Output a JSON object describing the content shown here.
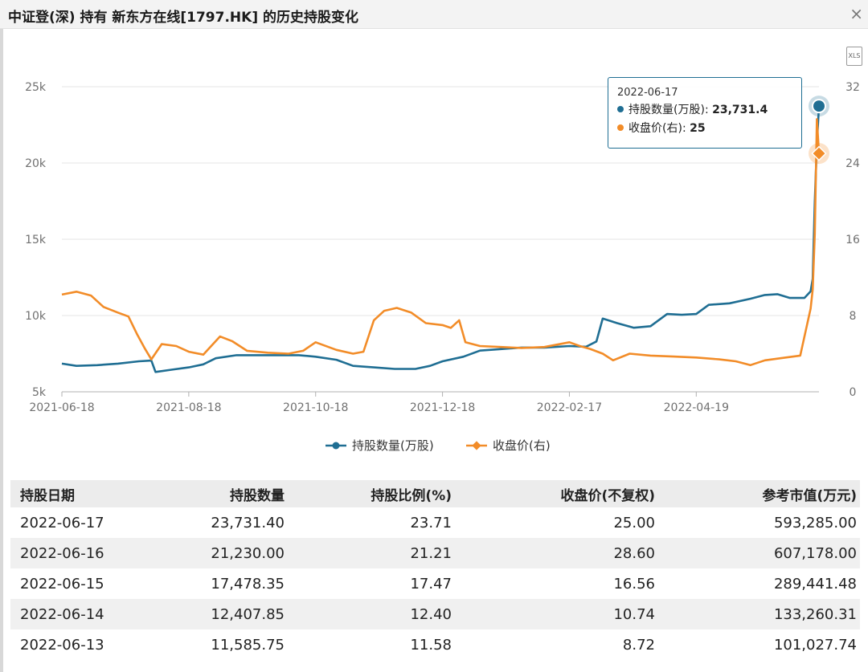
{
  "window": {
    "title": "中证登(深) 持有 新东方在线[1797.HK] 的历史持股变化",
    "close_label": "×",
    "export_label": "XLS"
  },
  "colors": {
    "holdings": "#1f6e93",
    "price": "#f28c28",
    "grid": "#e6e6e6"
  },
  "tooltip": {
    "date": "2022-06-17",
    "holdings_label": "持股数量(万股)",
    "holdings_value": "23,731.4",
    "price_label": "收盘价(右)",
    "price_value": "25"
  },
  "chart_data": {
    "type": "line",
    "x_ticks": [
      "2021-06-18",
      "2021-08-18",
      "2021-10-18",
      "2021-12-18",
      "2022-02-17",
      "2022-04-19"
    ],
    "y_left": {
      "ticks": [
        "5k",
        "10k",
        "15k",
        "20k",
        "25k"
      ],
      "ylim": [
        5000,
        25000
      ]
    },
    "y_right": {
      "ticks": [
        "0",
        "8",
        "16",
        "24",
        "32"
      ],
      "ylim": [
        0,
        32
      ]
    },
    "xlim": [
      "2021-06-18",
      "2022-06-17"
    ],
    "grid": true,
    "legend_position": "bottom",
    "series": [
      {
        "name": "持股数量(万股)",
        "axis": "left",
        "points": [
          [
            "2021-06-18",
            6850
          ],
          [
            "2021-06-25",
            6700
          ],
          [
            "2021-07-05",
            6750
          ],
          [
            "2021-07-15",
            6850
          ],
          [
            "2021-07-25",
            7000
          ],
          [
            "2021-07-31",
            7050
          ],
          [
            "2021-08-02",
            6300
          ],
          [
            "2021-08-10",
            6450
          ],
          [
            "2021-08-18",
            6600
          ],
          [
            "2021-08-25",
            6800
          ],
          [
            "2021-08-31",
            7200
          ],
          [
            "2021-09-10",
            7400
          ],
          [
            "2021-09-25",
            7400
          ],
          [
            "2021-10-10",
            7400
          ],
          [
            "2021-10-18",
            7300
          ],
          [
            "2021-10-28",
            7100
          ],
          [
            "2021-11-05",
            6700
          ],
          [
            "2021-11-15",
            6600
          ],
          [
            "2021-11-25",
            6500
          ],
          [
            "2021-12-05",
            6500
          ],
          [
            "2021-12-12",
            6700
          ],
          [
            "2021-12-18",
            7000
          ],
          [
            "2021-12-28",
            7300
          ],
          [
            "2022-01-05",
            7700
          ],
          [
            "2022-01-15",
            7800
          ],
          [
            "2022-01-25",
            7900
          ],
          [
            "2022-02-05",
            7900
          ],
          [
            "2022-02-17",
            8000
          ],
          [
            "2022-02-25",
            7950
          ],
          [
            "2022-03-02",
            8300
          ],
          [
            "2022-03-05",
            9800
          ],
          [
            "2022-03-12",
            9500
          ],
          [
            "2022-03-20",
            9200
          ],
          [
            "2022-03-28",
            9300
          ],
          [
            "2022-04-05",
            10100
          ],
          [
            "2022-04-12",
            10050
          ],
          [
            "2022-04-19",
            10100
          ],
          [
            "2022-04-25",
            10700
          ],
          [
            "2022-05-05",
            10800
          ],
          [
            "2022-05-15",
            11100
          ],
          [
            "2022-05-22",
            11350
          ],
          [
            "2022-05-28",
            11400
          ],
          [
            "2022-06-03",
            11150
          ],
          [
            "2022-06-10",
            11150
          ],
          [
            "2022-06-13",
            11585.75
          ],
          [
            "2022-06-14",
            12407.85
          ],
          [
            "2022-06-15",
            17478.35
          ],
          [
            "2022-06-16",
            21230
          ],
          [
            "2022-06-17",
            23731.4
          ]
        ]
      },
      {
        "name": "收盘价(右)",
        "axis": "right",
        "points": [
          [
            "2021-06-18",
            10.2
          ],
          [
            "2021-06-25",
            10.5
          ],
          [
            "2021-07-02",
            10.1
          ],
          [
            "2021-07-08",
            8.9
          ],
          [
            "2021-07-15",
            8.3
          ],
          [
            "2021-07-20",
            7.9
          ],
          [
            "2021-07-24",
            6.1
          ],
          [
            "2021-07-28",
            4.5
          ],
          [
            "2021-07-31",
            3.4
          ],
          [
            "2021-08-05",
            5.0
          ],
          [
            "2021-08-12",
            4.8
          ],
          [
            "2021-08-18",
            4.2
          ],
          [
            "2021-08-25",
            3.9
          ],
          [
            "2021-09-02",
            5.8
          ],
          [
            "2021-09-08",
            5.3
          ],
          [
            "2021-09-15",
            4.3
          ],
          [
            "2021-09-25",
            4.1
          ],
          [
            "2021-10-05",
            4.0
          ],
          [
            "2021-10-12",
            4.3
          ],
          [
            "2021-10-18",
            5.2
          ],
          [
            "2021-10-28",
            4.4
          ],
          [
            "2021-11-05",
            4.0
          ],
          [
            "2021-11-10",
            4.2
          ],
          [
            "2021-11-15",
            7.5
          ],
          [
            "2021-11-20",
            8.5
          ],
          [
            "2021-11-26",
            8.8
          ],
          [
            "2021-12-03",
            8.3
          ],
          [
            "2021-12-10",
            7.2
          ],
          [
            "2021-12-18",
            7.0
          ],
          [
            "2021-12-22",
            6.7
          ],
          [
            "2021-12-26",
            7.5
          ],
          [
            "2021-12-29",
            5.2
          ],
          [
            "2022-01-05",
            4.8
          ],
          [
            "2022-01-15",
            4.7
          ],
          [
            "2022-01-25",
            4.6
          ],
          [
            "2022-02-05",
            4.7
          ],
          [
            "2022-02-17",
            5.2
          ],
          [
            "2022-02-22",
            4.8
          ],
          [
            "2022-02-27",
            4.5
          ],
          [
            "2022-03-05",
            4.0
          ],
          [
            "2022-03-10",
            3.3
          ],
          [
            "2022-03-18",
            4.0
          ],
          [
            "2022-03-28",
            3.8
          ],
          [
            "2022-04-08",
            3.7
          ],
          [
            "2022-04-19",
            3.6
          ],
          [
            "2022-04-30",
            3.4
          ],
          [
            "2022-05-08",
            3.2
          ],
          [
            "2022-05-15",
            2.8
          ],
          [
            "2022-05-22",
            3.3
          ],
          [
            "2022-06-01",
            3.6
          ],
          [
            "2022-06-08",
            3.8
          ],
          [
            "2022-06-13",
            8.72
          ],
          [
            "2022-06-14",
            10.74
          ],
          [
            "2022-06-15",
            16.56
          ],
          [
            "2022-06-16",
            28.6
          ],
          [
            "2022-06-17",
            25
          ]
        ]
      }
    ]
  },
  "table": {
    "headers": [
      "持股日期",
      "持股数量",
      "持股比例(%)",
      "收盘价(不复权)",
      "参考市值(万元)"
    ],
    "rows": [
      [
        "2022-06-17",
        "23,731.40",
        "23.71",
        "25.00",
        "593,285.00"
      ],
      [
        "2022-06-16",
        "21,230.00",
        "21.21",
        "28.60",
        "607,178.00"
      ],
      [
        "2022-06-15",
        "17,478.35",
        "17.47",
        "16.56",
        "289,441.48"
      ],
      [
        "2022-06-14",
        "12,407.85",
        "12.40",
        "10.74",
        "133,260.31"
      ],
      [
        "2022-06-13",
        "11,585.75",
        "11.58",
        "8.72",
        "101,027.74"
      ]
    ]
  }
}
